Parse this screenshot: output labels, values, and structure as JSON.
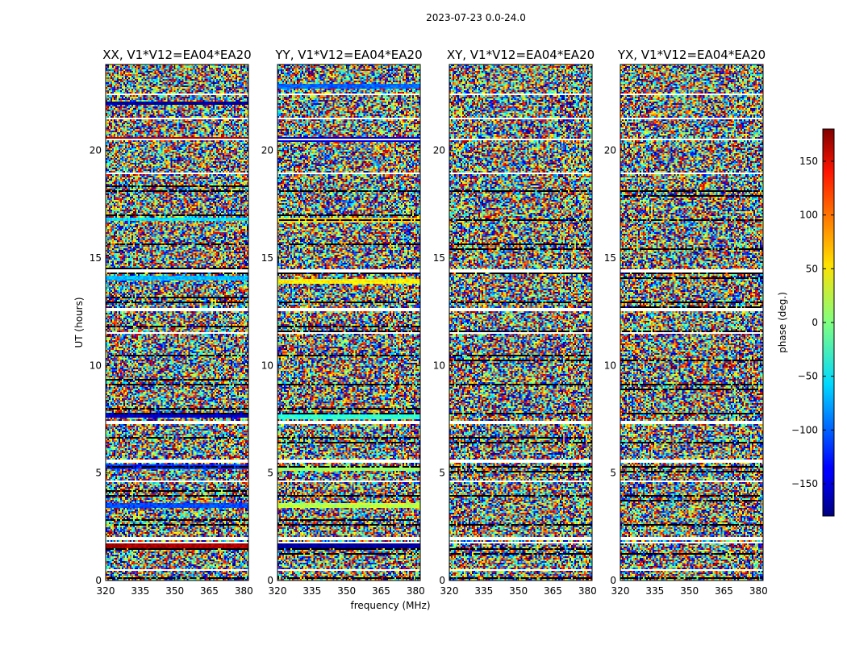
{
  "chart_data": {
    "type": "heatmap",
    "suptitle": "2023-07-23 0.0-24.0",
    "xlabel": "frequency (MHz)",
    "ylabel": "UT (hours)",
    "xlim": [
      320,
      382
    ],
    "ylim": [
      0,
      24
    ],
    "xticks": [
      320,
      335,
      350,
      365,
      380
    ],
    "yticks": [
      0,
      5,
      10,
      15,
      20
    ],
    "panels": [
      {
        "title": "XX, V1*V12=EA04*EA20",
        "pol": "XX"
      },
      {
        "title": "YY, V1*V12=EA04*EA20",
        "pol": "YY"
      },
      {
        "title": "XY, V1*V12=EA04*EA20",
        "pol": "XY"
      },
      {
        "title": "YX, V1*V12=EA04*EA20",
        "pol": "YX"
      }
    ],
    "colorbar": {
      "label": "phase (deg.)",
      "range": [
        -180,
        180
      ],
      "ticks": [
        -150,
        -100,
        -50,
        0,
        50,
        100,
        150
      ],
      "colormap": "jet"
    },
    "flagged_ut_hours": [
      0.5,
      1.75,
      1.95,
      4.6,
      5.55,
      7.35,
      11.5,
      12.6,
      14.4,
      18.95,
      20.5,
      21.5,
      22.6
    ],
    "coherent_bands": [
      {
        "panel": "XX",
        "ut": 20.55,
        "phase": 160
      },
      {
        "panel": "XX",
        "ut": 16.8,
        "phase": -55
      },
      {
        "panel": "XX",
        "ut": 14.05,
        "phase": -70
      },
      {
        "panel": "XX",
        "ut": 7.7,
        "phase": -150
      },
      {
        "panel": "XX",
        "ut": 5.3,
        "phase": -120
      },
      {
        "panel": "XX",
        "ut": 3.5,
        "phase": -110
      },
      {
        "panel": "XX",
        "ut": 1.6,
        "phase": 165
      },
      {
        "panel": "XX",
        "ut": 22.2,
        "phase": -170
      },
      {
        "panel": "YY",
        "ut": 20.5,
        "phase": -150
      },
      {
        "panel": "YY",
        "ut": 16.75,
        "phase": 60
      },
      {
        "panel": "YY",
        "ut": 13.9,
        "phase": 50
      },
      {
        "panel": "YY",
        "ut": 7.6,
        "phase": -30
      },
      {
        "panel": "YY",
        "ut": 5.2,
        "phase": 10
      },
      {
        "panel": "YY",
        "ut": 3.5,
        "phase": 20
      },
      {
        "panel": "YY",
        "ut": 1.6,
        "phase": -170
      },
      {
        "panel": "YY",
        "ut": 23.0,
        "phase": -100
      }
    ]
  }
}
